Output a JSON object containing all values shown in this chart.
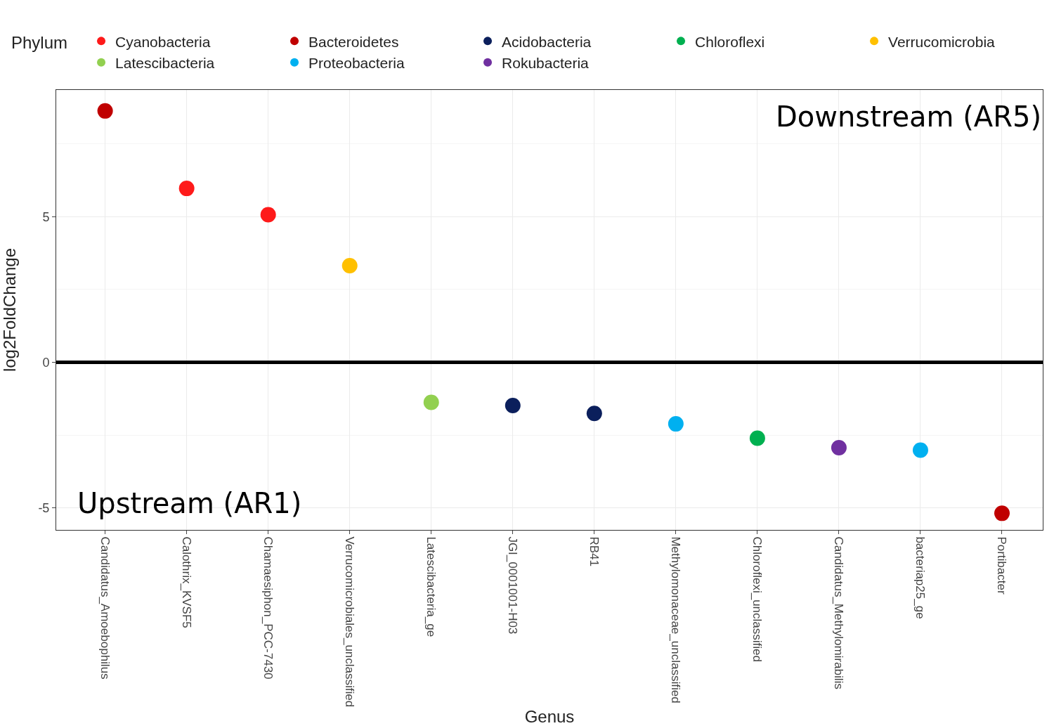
{
  "chart_data": {
    "type": "scatter",
    "xlabel": "Genus",
    "ylabel": "log2FoldChange",
    "legend_title": "Phylum",
    "categories": [
      "Candidatus_Amoebophilus",
      "Calothrix_KVSF5",
      "Chamaesiphon_PCC-7430",
      "Verrucomicrobiales_unclassified",
      "Latescibacteria_ge",
      "JGI_0001001-H03",
      "RB41",
      "Methylomonaceae_unclassified",
      "Chloroflexi_unclassified",
      "Candidatus_Methylomirabilis",
      "bacteriap25_ge",
      "Portibacter"
    ],
    "series": [
      {
        "name": "Cyanobacteria",
        "color": "#fe1a1a",
        "values": [
          null,
          5.97,
          5.07,
          null,
          null,
          null,
          null,
          null,
          null,
          null,
          null,
          null
        ]
      },
      {
        "name": "Bacteroidetes",
        "color": "#c00000",
        "values": [
          8.63,
          null,
          null,
          null,
          null,
          null,
          null,
          null,
          null,
          null,
          null,
          -5.18
        ]
      },
      {
        "name": "Acidobacteria",
        "color": "#0b1f5c",
        "values": [
          null,
          null,
          null,
          null,
          null,
          -1.48,
          -1.75,
          null,
          null,
          null,
          null,
          null
        ]
      },
      {
        "name": "Chloroflexi",
        "color": "#00b050",
        "values": [
          null,
          null,
          null,
          null,
          null,
          null,
          null,
          null,
          -2.6,
          null,
          null,
          null
        ]
      },
      {
        "name": "Verrucomicrobia",
        "color": "#ffc000",
        "values": [
          null,
          null,
          null,
          3.32,
          null,
          null,
          null,
          null,
          null,
          null,
          null,
          null
        ]
      },
      {
        "name": "Latescibacteria",
        "color": "#92d050",
        "values": [
          null,
          null,
          null,
          null,
          -1.37,
          null,
          null,
          null,
          null,
          null,
          null,
          null
        ]
      },
      {
        "name": "Proteobacteria",
        "color": "#00b0f0",
        "values": [
          null,
          null,
          null,
          null,
          null,
          null,
          null,
          -2.11,
          null,
          null,
          -3.01,
          null
        ]
      },
      {
        "name": "Rokubacteria",
        "color": "#7030a0",
        "values": [
          null,
          null,
          null,
          null,
          null,
          null,
          null,
          null,
          null,
          -2.93,
          null,
          null
        ]
      }
    ],
    "ylim": [
      -5.75,
      9.35
    ],
    "yticks": [
      -5,
      0,
      5
    ],
    "grid": true,
    "legend": "top",
    "marker": "circle",
    "ref_lines": [
      {
        "axis": "y",
        "value": 0,
        "color": "#000000"
      }
    ],
    "annotations": [
      "Downstream (AR5)",
      "Upstream (AR1)"
    ]
  }
}
